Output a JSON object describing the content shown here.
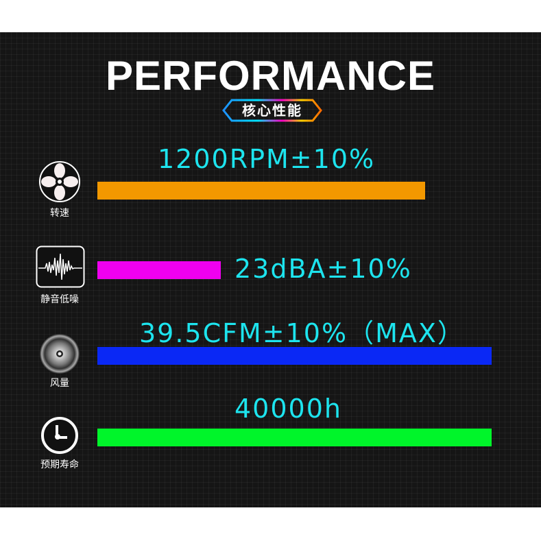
{
  "title": "PERFORMANCE",
  "subtitle": "核心性能",
  "metrics": [
    {
      "label": "转速",
      "value": "1200RPM±10%",
      "icon": "fan-icon",
      "color": "#f39800",
      "fill_pct": 83
    },
    {
      "label": "静音低噪",
      "value": "23dBA±10%",
      "icon": "sound-wave-icon",
      "color": "#f000f0",
      "fill_pct": 31
    },
    {
      "label": "风量",
      "value": "39.5CFM±10%（MAX）",
      "icon": "airflow-icon",
      "color": "#0a28f5",
      "fill_pct": 100
    },
    {
      "label": "预期寿命",
      "value": "40000h",
      "icon": "clock-icon",
      "color": "#00f52a",
      "fill_pct": 100
    }
  ]
}
